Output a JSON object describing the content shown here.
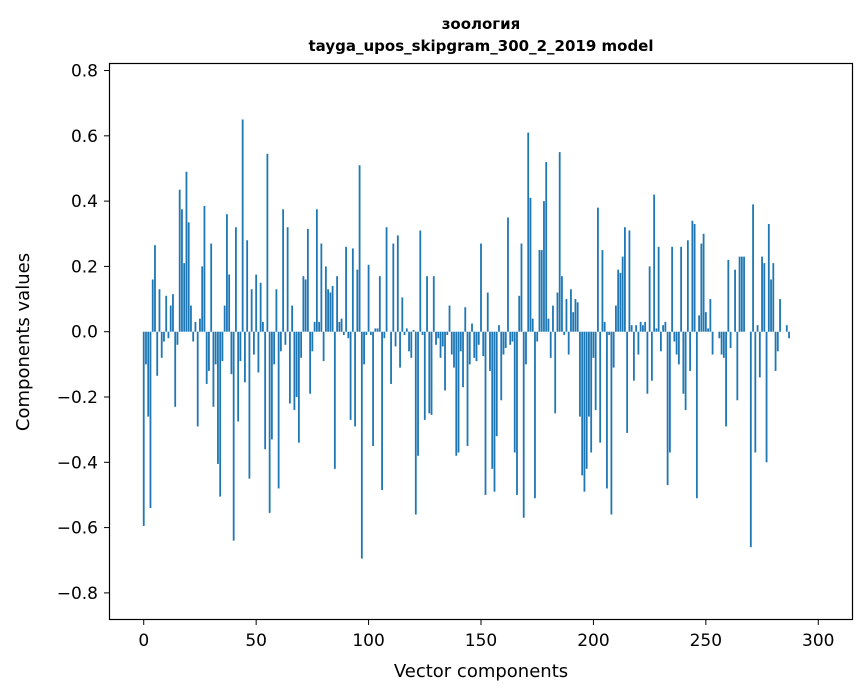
{
  "chart_data": {
    "type": "bar",
    "title": "зоология",
    "subtitle": "tayga_upos_skipgram_300_2_2019 model",
    "xlabel": "Vector components",
    "ylabel": "Components values",
    "xlim": [
      -15,
      315
    ],
    "ylim": [
      -0.88,
      0.82
    ],
    "xticks": [
      0,
      50,
      100,
      150,
      200,
      250,
      300
    ],
    "yticks": [
      -0.8,
      -0.6,
      -0.4,
      -0.2,
      0.0,
      0.2,
      0.4,
      0.6,
      0.8
    ],
    "ytick_labels": [
      "−0.8",
      "−0.6",
      "−0.4",
      "−0.2",
      "0.0",
      "0.2",
      "0.4",
      "0.6",
      "0.8"
    ],
    "xtick_labels": [
      "0",
      "50",
      "100",
      "150",
      "200",
      "250",
      "300"
    ],
    "bar_color": "#1f77b4",
    "x": [
      0,
      1,
      2,
      3,
      4,
      5,
      6,
      7,
      8,
      9,
      10,
      11,
      12,
      13,
      14,
      15,
      16,
      17,
      18,
      19,
      20,
      21,
      22,
      23,
      24,
      25,
      26,
      27,
      28,
      29,
      30,
      31,
      32,
      33,
      34,
      35,
      36,
      37,
      38,
      39,
      40,
      41,
      42,
      43,
      44,
      45,
      46,
      47,
      48,
      49,
      50,
      51,
      52,
      53,
      54,
      55,
      56,
      57,
      58,
      59,
      60,
      61,
      62,
      63,
      64,
      65,
      66,
      67,
      68,
      69,
      70,
      71,
      72,
      73,
      74,
      75,
      76,
      77,
      78,
      79,
      80,
      81,
      82,
      83,
      84,
      85,
      86,
      87,
      88,
      89,
      90,
      91,
      92,
      93,
      94,
      95,
      96,
      97,
      98,
      99,
      100,
      101,
      102,
      103,
      104,
      105,
      106,
      107,
      108,
      109,
      110,
      111,
      112,
      113,
      114,
      115,
      116,
      117,
      118,
      119,
      120,
      121,
      122,
      123,
      124,
      125,
      126,
      127,
      128,
      129,
      130,
      131,
      132,
      133,
      134,
      135,
      136,
      137,
      138,
      139,
      140,
      141,
      142,
      143,
      144,
      145,
      146,
      147,
      148,
      149,
      150,
      151,
      152,
      153,
      154,
      155,
      156,
      157,
      158,
      159,
      160,
      161,
      162,
      163,
      164,
      165,
      166,
      167,
      168,
      169,
      170,
      171,
      172,
      173,
      174,
      175,
      176,
      177,
      178,
      179,
      180,
      181,
      182,
      183,
      184,
      185,
      186,
      187,
      188,
      189,
      190,
      191,
      192,
      193,
      194,
      195,
      196,
      197,
      198,
      199,
      200,
      201,
      202,
      203,
      204,
      205,
      206,
      207,
      208,
      209,
      210,
      211,
      212,
      213,
      214,
      215,
      216,
      217,
      218,
      219,
      220,
      221,
      222,
      223,
      224,
      225,
      226,
      227,
      228,
      229,
      230,
      231,
      232,
      233,
      234,
      235,
      236,
      237,
      238,
      239,
      240,
      241,
      242,
      243,
      244,
      245,
      246,
      247,
      248,
      249,
      250,
      251,
      252,
      253,
      254,
      255,
      256,
      257,
      258,
      259,
      260,
      261,
      262,
      263,
      264,
      265,
      266,
      267,
      268,
      269,
      270,
      271,
      272,
      273,
      274,
      275,
      276,
      277,
      278,
      279,
      280,
      281,
      282,
      283,
      284,
      285,
      286,
      287,
      288,
      289,
      290,
      291,
      292,
      293,
      294,
      295,
      296,
      297,
      298,
      299
    ],
    "values": [
      -0.595,
      -0.1,
      -0.26,
      -0.54,
      0.16,
      0.265,
      -0.135,
      0.13,
      -0.08,
      -0.03,
      0.11,
      -0.02,
      0.08,
      0.115,
      -0.23,
      -0.04,
      0.435,
      0.375,
      0.21,
      0.49,
      0.335,
      0.08,
      -0.03,
      0.03,
      -0.29,
      0.04,
      0.2,
      0.385,
      -0.16,
      -0.12,
      0.27,
      -0.23,
      -0.1,
      -0.405,
      -0.505,
      -0.09,
      0.08,
      0.36,
      0.175,
      -0.13,
      -0.64,
      0.32,
      -0.275,
      -0.09,
      0.65,
      -0.155,
      0.28,
      -0.45,
      0.13,
      -0.07,
      0.175,
      -0.125,
      0.15,
      0.03,
      -0.36,
      0.545,
      -0.555,
      -0.33,
      -0.1,
      0.13,
      -0.48,
      -0.06,
      0.375,
      -0.04,
      0.32,
      -0.22,
      0.08,
      -0.24,
      -0.2,
      -0.34,
      -0.08,
      0.17,
      0.16,
      0.315,
      -0.19,
      -0.06,
      0.03,
      0.375,
      0.03,
      0.27,
      -0.09,
      0.2,
      0.13,
      0.12,
      0.14,
      -0.42,
      0.17,
      0.03,
      0.04,
      -0.01,
      0.26,
      -0.02,
      -0.27,
      0.255,
      -0.29,
      0.19,
      0.51,
      -0.695,
      -0.1,
      -0.01,
      0.205,
      -0.01,
      -0.35,
      0.01,
      0.01,
      0.17,
      -0.485,
      -0.02,
      0.32,
      0.0,
      -0.16,
      0.27,
      -0.045,
      0.295,
      -0.11,
      0.105,
      -0.01,
      0.01,
      -0.06,
      -0.08,
      0.005,
      -0.56,
      -0.38,
      0.31,
      -0.01,
      -0.27,
      0.17,
      -0.25,
      -0.255,
      0.17,
      -0.04,
      -0.02,
      -0.08,
      -0.045,
      -0.18,
      -0.01,
      0.08,
      -0.07,
      -0.11,
      -0.38,
      -0.37,
      -0.06,
      -0.17,
      0.075,
      -0.35,
      -0.1,
      0.025,
      -0.08,
      -0.09,
      -0.04,
      0.27,
      -0.075,
      -0.5,
      0.12,
      -0.12,
      -0.42,
      -0.49,
      -0.32,
      0.02,
      -0.21,
      -0.07,
      -0.05,
      0.35,
      -0.04,
      -0.03,
      -0.37,
      -0.5,
      0.11,
      0.27,
      -0.57,
      -0.1,
      0.61,
      0.41,
      0.04,
      -0.51,
      -0.03,
      0.25,
      0.25,
      0.4,
      0.52,
      0.04,
      -0.08,
      0.08,
      -0.25,
      0.12,
      0.55,
      0.17,
      -0.01,
      0.1,
      -0.07,
      0.13,
      0.06,
      0.1,
      0.09,
      -0.26,
      -0.44,
      -0.49,
      -0.42,
      -0.26,
      -0.37,
      -0.08,
      -0.24,
      0.38,
      -0.34,
      0.25,
      0.03,
      -0.48,
      -0.01,
      -0.56,
      -0.11,
      0.08,
      0.19,
      0.18,
      0.23,
      0.32,
      -0.31,
      0.31,
      0.02,
      -0.15,
      0.02,
      -0.07,
      0.03,
      0.02,
      0.03,
      -0.19,
      0.2,
      -0.15,
      0.42,
      0.01,
      0.26,
      -0.06,
      0.02,
      0.03,
      -0.47,
      -0.37,
      0.26,
      -0.03,
      -0.07,
      -0.1,
      0.26,
      -0.19,
      -0.24,
      0.28,
      -0.12,
      0.34,
      0.33,
      -0.51,
      0.05,
      0.27,
      0.3,
      0.06,
      0.01,
      0.1,
      -0.07,
      0.0,
      0.0,
      -0.02,
      -0.07,
      -0.08,
      -0.29,
      0.22,
      -0.05,
      0.0,
      0.19,
      -0.21,
      0.23,
      0.23,
      0.23,
      0.0,
      0.0,
      -0.66,
      0.39,
      -0.37,
      0.02,
      -0.14,
      0.23,
      0.21,
      -0.4,
      0.33,
      0.16,
      0.21,
      -0.12,
      -0.06,
      0.1,
      0.0,
      0.0,
      0.02,
      -0.02,
      0.0,
      0.0,
      0.0,
      0.0,
      0.0,
      0.0,
      0.0,
      0.0,
      0.0,
      0.0,
      0.0,
      0.0
    ]
  }
}
